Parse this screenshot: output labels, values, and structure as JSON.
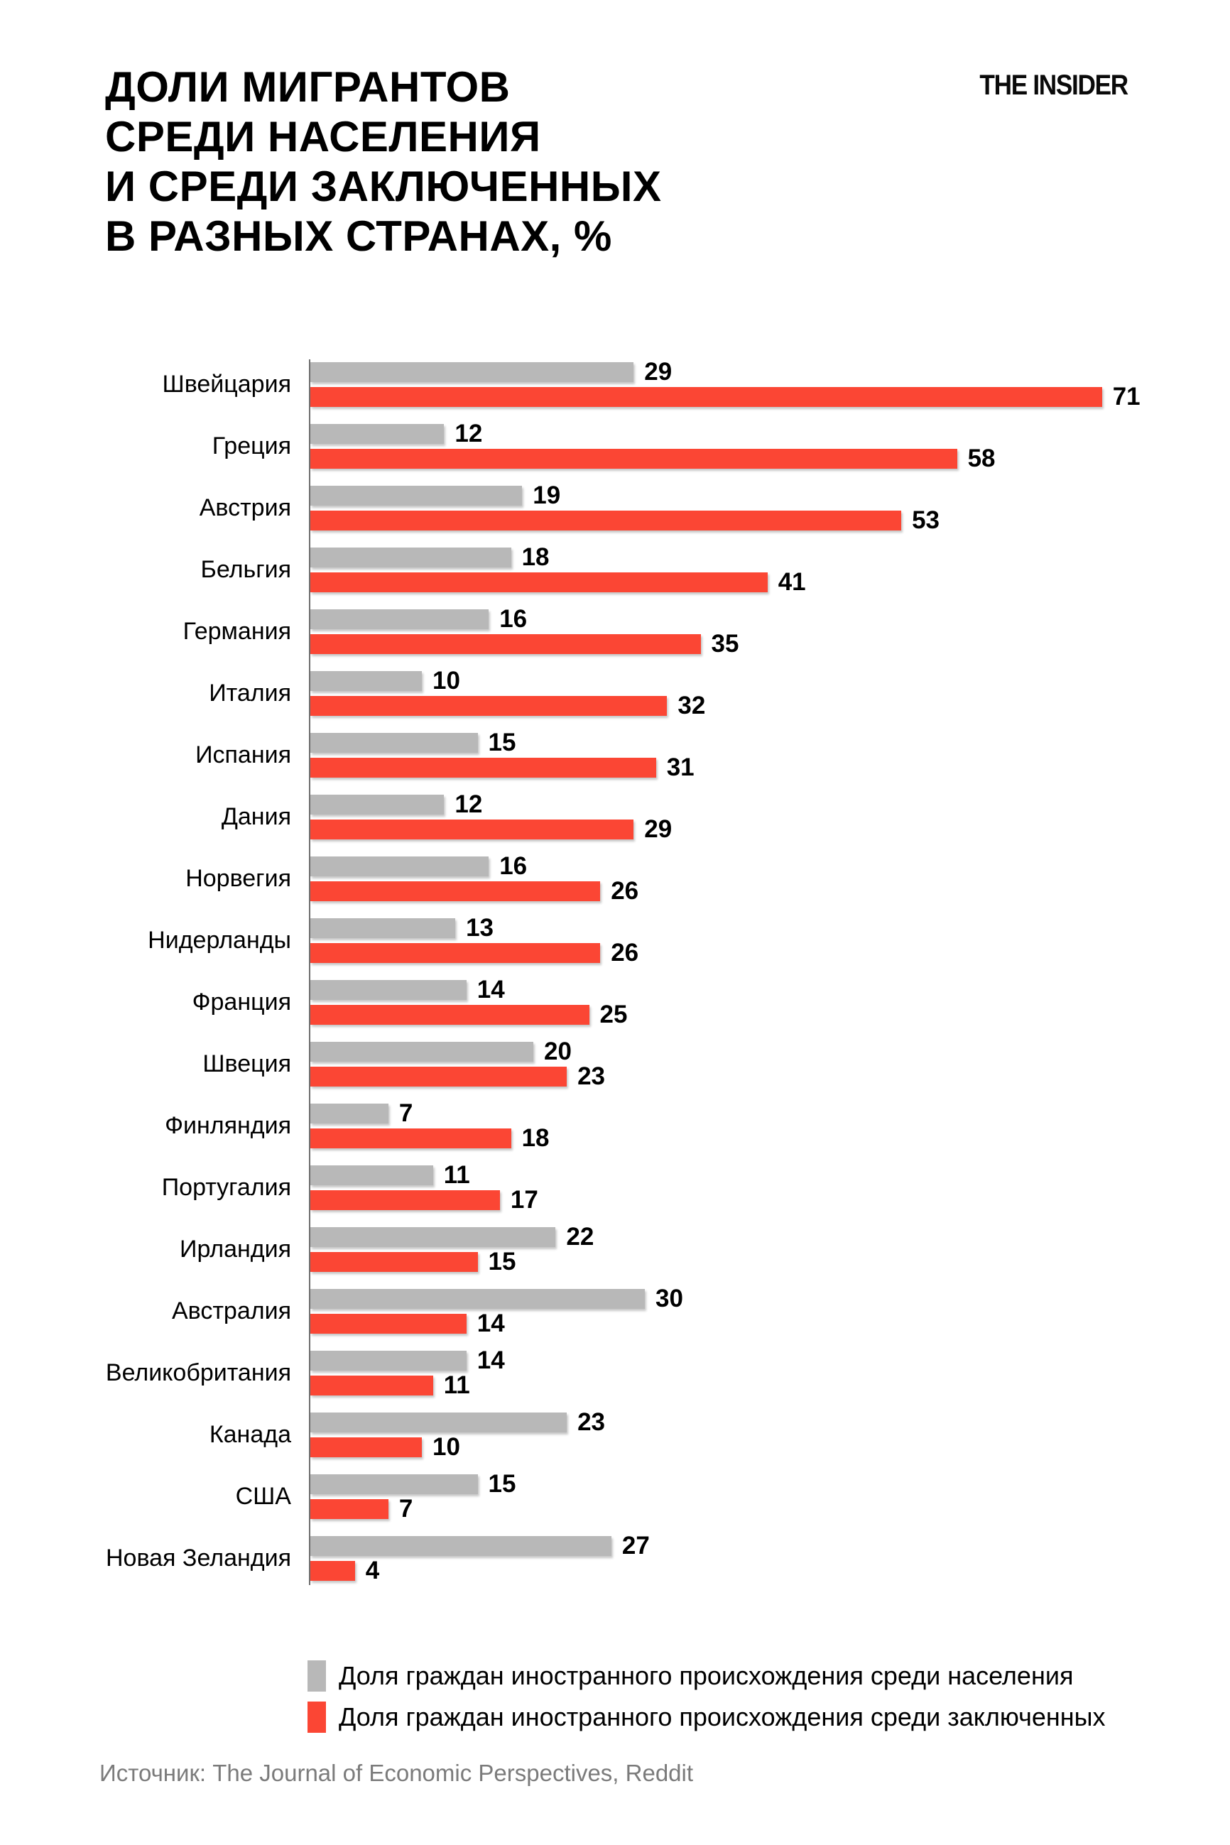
{
  "page": {
    "title_lines": [
      "ДОЛИ МИГРАНТОВ",
      "СРЕДИ НАСЕЛЕНИЯ",
      "И СРЕДИ ЗАКЛЮЧЕННЫХ",
      "В РАЗНЫХ СТРАНАХ, %"
    ],
    "logo": "THE INSIDER",
    "source": "Источник: The Journal of Economic Perspectives, Reddit"
  },
  "colors": {
    "population_bar": "#B8B8B8",
    "prisoners_bar": "#FB4634",
    "axis": "#6E6E6E",
    "title_text": "#000000",
    "source_text": "#7B7B7B"
  },
  "legend": {
    "population": "Доля граждан иностранного происхождения среди населения",
    "prisoners": "Доля граждан иностранного происхождения среди заключенных"
  },
  "chart_data": {
    "type": "bar",
    "orientation": "horizontal",
    "title": "ДОЛИ МИГРАНТОВ СРЕДИ НАСЕЛЕНИЯ И СРЕДИ ЗАКЛЮЧЕННЫХ В РАЗНЫХ СТРАНАХ, %",
    "categories": [
      "Швейцария",
      "Греция",
      "Австрия",
      "Бельгия",
      "Германия",
      "Италия",
      "Испания",
      "Дания",
      "Норвегия",
      "Нидерланды",
      "Франция",
      "Швеция",
      "Финляндия",
      "Португалия",
      "Ирландия",
      "Австралия",
      "Великобритания",
      "Канада",
      "США",
      "Новая Зеландия"
    ],
    "series": [
      {
        "name": "Доля граждан иностранного происхождения среди населения",
        "color": "#B8B8B8",
        "values": [
          29,
          12,
          19,
          18,
          16,
          10,
          15,
          12,
          16,
          13,
          14,
          20,
          7,
          11,
          22,
          30,
          14,
          23,
          15,
          27
        ]
      },
      {
        "name": "Доля граждан иностранного происхождения среди заключенных",
        "color": "#FB4634",
        "values": [
          71,
          58,
          53,
          41,
          35,
          32,
          31,
          29,
          26,
          26,
          25,
          23,
          18,
          17,
          15,
          14,
          11,
          10,
          7,
          4
        ]
      }
    ],
    "xlim": [
      0,
      75
    ],
    "data_labels": true,
    "grid": false,
    "legend_position": "bottom"
  }
}
